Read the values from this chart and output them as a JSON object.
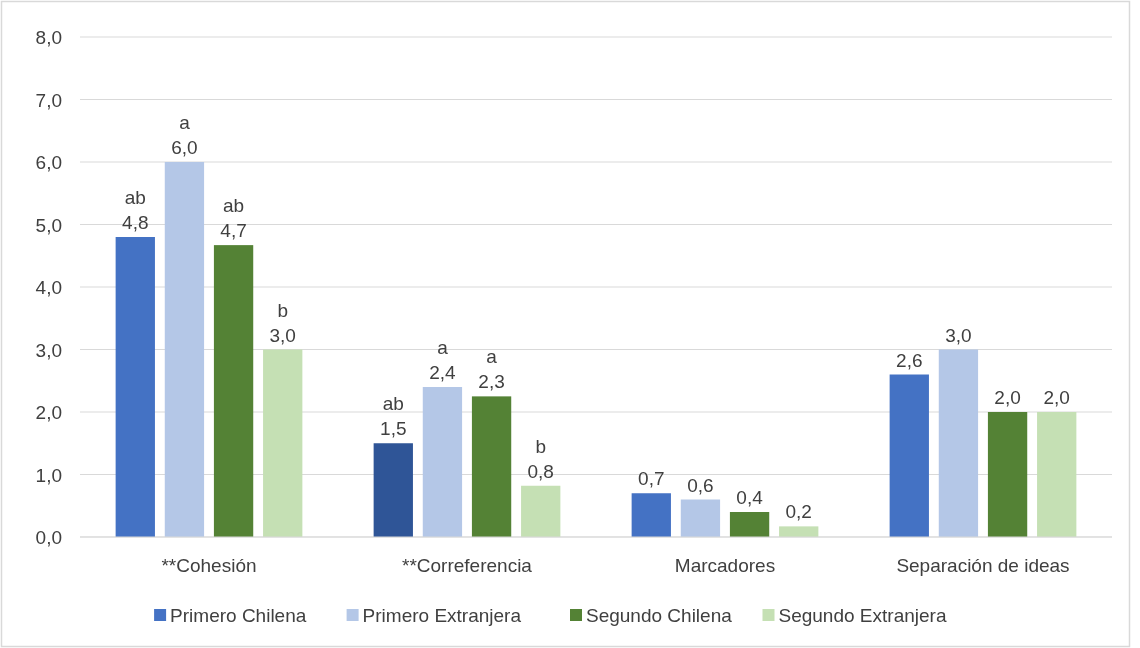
{
  "chart_data": {
    "type": "bar",
    "categories": [
      "**Cohesión",
      "**Correferencia",
      "Marcadores",
      "Separación de ideas"
    ],
    "series": [
      {
        "name": "Primero Chilena",
        "color": "#4472c4",
        "colors": [
          "#4472c4",
          "#2f5597",
          "#4472c4",
          "#4472c4"
        ],
        "values": [
          4.8,
          1.5,
          0.7,
          2.6
        ],
        "value_labels": [
          "ab\n4,8",
          "ab\n1,5",
          "0,7",
          "2,6"
        ]
      },
      {
        "name": "Primero Extranjera",
        "color": "#b4c7e7",
        "values": [
          6.0,
          2.4,
          0.6,
          3.0
        ],
        "value_labels": [
          "a\n6,0",
          "a\n2,4",
          "0,6",
          "3,0"
        ]
      },
      {
        "name": "Segundo Chilena",
        "color": "#548235",
        "values": [
          4.67,
          2.25,
          0.4,
          2.0
        ],
        "value_labels": [
          "ab\n4,7",
          "a\n2,3",
          "0,4",
          "2,0"
        ]
      },
      {
        "name": "Segundo Extranjera",
        "color": "#c5e0b4",
        "values": [
          3.0,
          0.82,
          0.17,
          2.0
        ],
        "value_labels": [
          "b\n3,0",
          "b\n0,8",
          "0,2",
          "2,0"
        ]
      }
    ],
    "ylim": [
      0,
      8
    ],
    "yticks": [
      {
        "value": 0,
        "label": "0,0"
      },
      {
        "value": 1,
        "label": "1,0"
      },
      {
        "value": 2,
        "label": "2,0"
      },
      {
        "value": 3,
        "label": "3,0"
      },
      {
        "value": 4,
        "label": "4,0"
      },
      {
        "value": 5,
        "label": "5,0"
      },
      {
        "value": 6,
        "label": "6,0"
      },
      {
        "value": 7,
        "label": "7,0"
      },
      {
        "value": 8,
        "label": "8,0"
      }
    ],
    "grid": "y",
    "legend": "bottom"
  }
}
